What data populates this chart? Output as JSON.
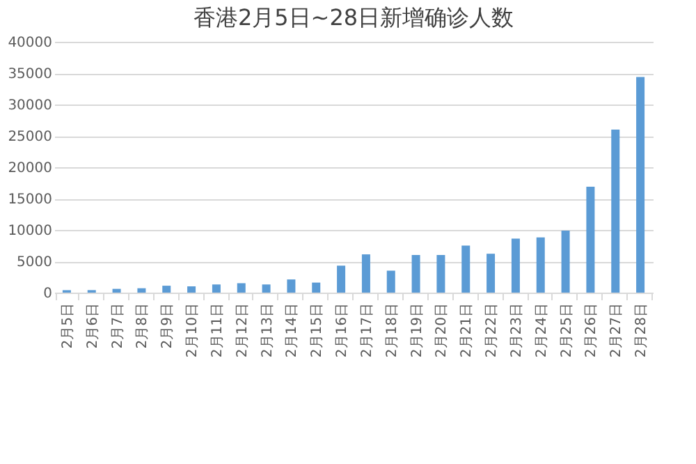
{
  "chart_data": {
    "type": "bar",
    "title": "香港2月5日~28日新增确诊人数",
    "categories": [
      "2月5日",
      "2月6日",
      "2月7日",
      "2月8日",
      "2月9日",
      "2月10日",
      "2月11日",
      "2月12日",
      "2月13日",
      "2月14日",
      "2月15日",
      "2月16日",
      "2月17日",
      "2月18日",
      "2月19日",
      "2月20日",
      "2月21日",
      "2月22日",
      "2月23日",
      "2月24日",
      "2月25日",
      "2月26日",
      "2月27日",
      "2月28日"
    ],
    "values": [
      400,
      400,
      600,
      700,
      1100,
      1000,
      1300,
      1500,
      1300,
      2100,
      1600,
      4300,
      6100,
      3500,
      6000,
      6000,
      7500,
      6200,
      8600,
      8800,
      9900,
      16900,
      26000,
      34400
    ],
    "color": "#5b9bd5",
    "ylim": [
      0,
      40000
    ],
    "yticks": [
      0,
      5000,
      10000,
      15000,
      20000,
      25000,
      30000,
      35000,
      40000
    ],
    "grid": "y"
  }
}
